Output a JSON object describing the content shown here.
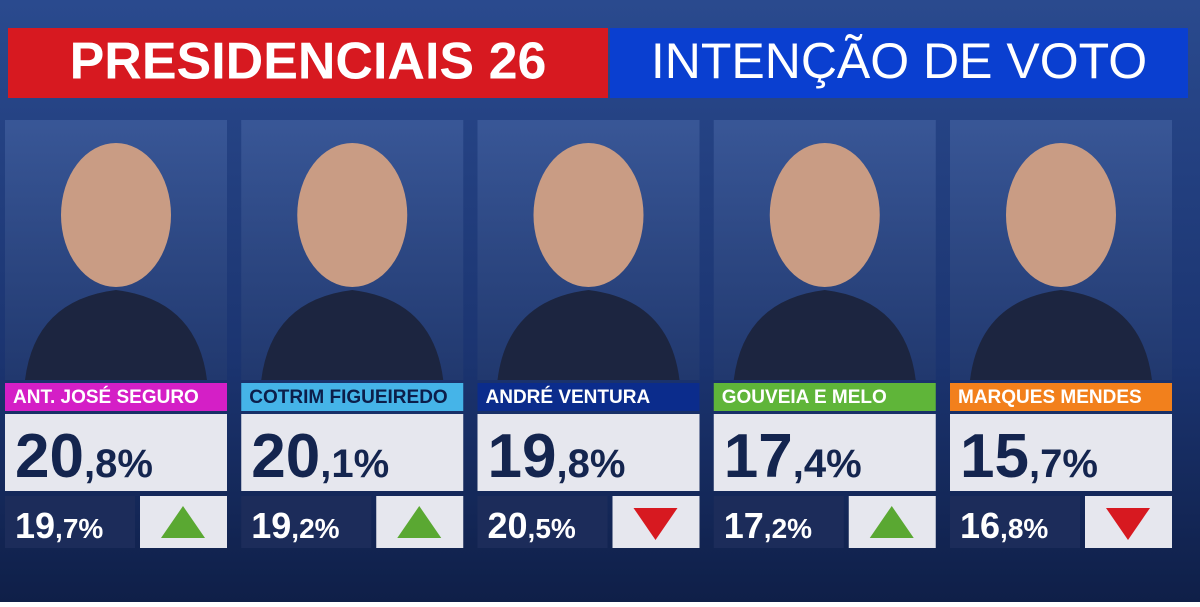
{
  "header": {
    "title": "PRESIDENCIAIS 26",
    "subtitle": "INTENÇÃO DE VOTO"
  },
  "candidates": [
    {
      "name": "ANT. JOSÉ SEGURO",
      "color": "#d41fc6",
      "name_color": "#ffffff",
      "current": {
        "int": "20",
        "dec": ",8%"
      },
      "previous": {
        "int": "19",
        "dec": ",7%"
      },
      "trend": "up"
    },
    {
      "name": "COTRIM FIGUEIREDO",
      "color": "#45b4e8",
      "name_color": "#0c1e4a",
      "current": {
        "int": "20",
        "dec": ",1%"
      },
      "previous": {
        "int": "19",
        "dec": ",2%"
      },
      "trend": "up"
    },
    {
      "name": "ANDRÉ VENTURA",
      "color": "#0b2c8c",
      "name_color": "#ffffff",
      "current": {
        "int": "19",
        "dec": ",8%"
      },
      "previous": {
        "int": "20",
        "dec": ",5%"
      },
      "trend": "down"
    },
    {
      "name": "GOUVEIA E MELO",
      "color": "#5fb539",
      "name_color": "#ffffff",
      "current": {
        "int": "17",
        "dec": ",4%"
      },
      "previous": {
        "int": "17",
        "dec": ",2%"
      },
      "trend": "up"
    },
    {
      "name": "MARQUES MENDES",
      "color": "#f2801c",
      "name_color": "#ffffff",
      "current": {
        "int": "15",
        "dec": ",7%"
      },
      "previous": {
        "int": "16",
        "dec": ",8%"
      },
      "trend": "down"
    }
  ]
}
